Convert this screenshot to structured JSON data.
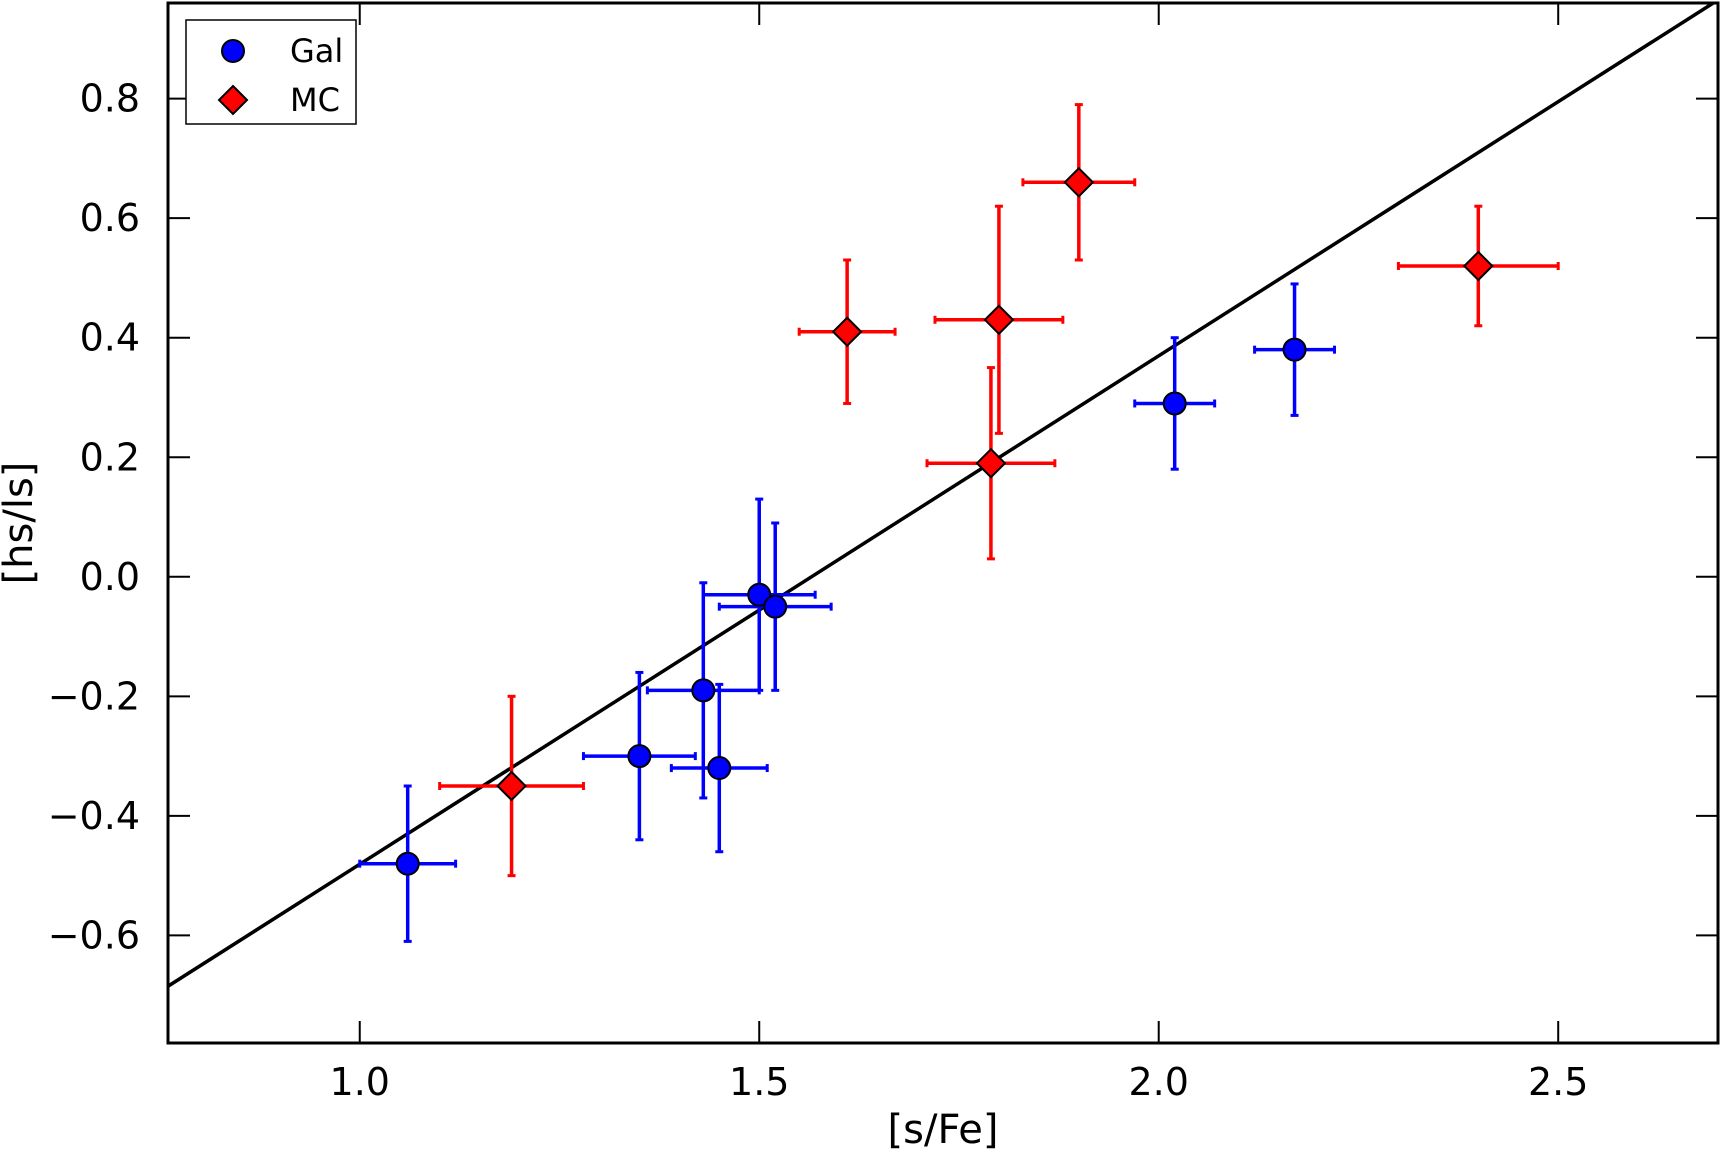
{
  "chart_data": {
    "type": "scatter",
    "xlabel": "[s/Fe]",
    "ylabel": "[hs/ls]",
    "xlim": [
      0.76,
      2.7
    ],
    "ylim": [
      -0.78,
      0.96
    ],
    "x_ticks": [
      1.0,
      1.5,
      2.0,
      2.5
    ],
    "x_tick_labels": [
      "1.0",
      "1.5",
      "2.0",
      "2.5"
    ],
    "y_ticks": [
      -0.6,
      -0.4,
      -0.2,
      0.0,
      0.2,
      0.4,
      0.6,
      0.8
    ],
    "y_tick_labels": [
      "−0.6",
      "−0.4",
      "−0.2",
      "0.0",
      "0.2",
      "0.4",
      "0.6",
      "0.8"
    ],
    "grid": false,
    "legend_position": "top-left",
    "series": [
      {
        "name": "Gal",
        "marker": "circle",
        "color": "#0000ff",
        "points": [
          {
            "x": 1.06,
            "y": -0.48,
            "xerr": 0.06,
            "yerr": 0.13
          },
          {
            "x": 1.35,
            "y": -0.3,
            "xerr": 0.07,
            "yerr": 0.14
          },
          {
            "x": 1.43,
            "y": -0.19,
            "xerr": 0.07,
            "yerr": 0.18
          },
          {
            "x": 1.45,
            "y": -0.32,
            "xerr": 0.06,
            "yerr": 0.14
          },
          {
            "x": 1.5,
            "y": -0.03,
            "xerr": 0.07,
            "yerr": 0.16
          },
          {
            "x": 1.52,
            "y": -0.05,
            "xerr": 0.07,
            "yerr": 0.14
          },
          {
            "x": 2.02,
            "y": 0.29,
            "xerr": 0.05,
            "yerr": 0.11
          },
          {
            "x": 2.17,
            "y": 0.38,
            "xerr": 0.05,
            "yerr": 0.11
          }
        ]
      },
      {
        "name": "MC",
        "marker": "diamond",
        "color": "#ff0000",
        "points": [
          {
            "x": 1.19,
            "y": -0.35,
            "xerr": 0.09,
            "yerr": 0.15
          },
          {
            "x": 1.61,
            "y": 0.41,
            "xerr": 0.06,
            "yerr": 0.12
          },
          {
            "x": 1.79,
            "y": 0.19,
            "xerr": 0.08,
            "yerr": 0.16
          },
          {
            "x": 1.8,
            "y": 0.43,
            "xerr": 0.08,
            "yerr": 0.19
          },
          {
            "x": 1.9,
            "y": 0.66,
            "xerr": 0.07,
            "yerr": 0.13
          },
          {
            "x": 2.4,
            "y": 0.52,
            "xerr": 0.1,
            "yerr": 0.1
          }
        ]
      }
    ],
    "fit_line": {
      "color": "#000000",
      "x": [
        0.76,
        2.7
      ],
      "y": [
        -0.685,
        0.965
      ]
    }
  }
}
